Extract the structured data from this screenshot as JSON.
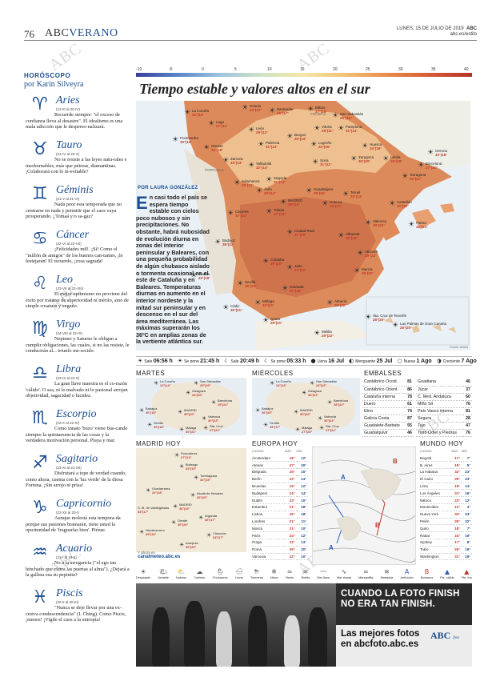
{
  "header": {
    "page_number": "76",
    "brand": "ABC",
    "section": "VERANO",
    "date": "LUNES, 15 DE JULIO DE 2019",
    "paper": "ABC",
    "site": "abc.es/estilo"
  },
  "horoscope": {
    "title": "HORÓSCOPO",
    "author": "por Karin Silveyra",
    "signs": [
      {
        "name": "Aries",
        "dates": "(21-III al 20-IV)",
        "text": "Recuerde siempre: \"el exceso de confianza lleva al desastre\". El idealismo es una mala adicción que le desperso-nalizará."
      },
      {
        "name": "Tauro",
        "dates": "(21-IV al 20-V)",
        "text": "No se resiste a las leyes natu-rales e insobornables, más que pétreas, diamantinas. ¡Colaborará con lo in-evitable?"
      },
      {
        "name": "Géminis",
        "dates": "(21-V al 21-VI)",
        "text": "Nada peor esta temporada que no centrarse en nada y permitir que el caos vaya prosperando. ¿Tomaá y/o sa-gaz?"
      },
      {
        "name": "Cáncer",
        "dates": "(22-VI al 22-VII)",
        "text": "¡Felicidades mil!. ¡Sí! Como el \"millón de amigos\" de los buenos can-tantes, ¡le festejarán! El recuerdo, ¡cosa sagrada!"
      },
      {
        "name": "Leo",
        "dates": "(23-VII al 23-VIII)",
        "text": "El mejor optimismo no proviene del éxito por tratarse de superioridad ni mérito, sino de simple cosatura y engaño."
      },
      {
        "name": "Virgo",
        "dates": "(24-VIII al 22-IX)",
        "text": "Neptuno y Saturno le obligan a cumplir obligaciones, las cuales, si no las resiste, le conducirán al... triunfo me-recido."
      },
      {
        "name": "Libra",
        "dates": "(23-IX al 22-X)",
        "text": "La gran llave maestra es el co-razón 'cálido'. O sea, ni lo malvado ni lo pasional arrojan objetividad, sagacidad o lucidez."
      },
      {
        "name": "Escorpio",
        "dates": "(23-X al 22-XI)",
        "text": "Como innato 'buzo' viene bus-cando siempre la quintaesencia de las cosas y la verdadera motivación personal. Playa y mar."
      },
      {
        "name": "Sagitario",
        "dates": "(23-XI al 21-XII)",
        "text": "Disfrutará a tope de verdad cuando, como ahora, cuenta con la 'luz verde' de la diosa Fortuna. ¡Sin arrojo ni prisa!"
      },
      {
        "name": "Capricornio",
        "dates": "(22-XII al 20-I)",
        "text": "Aunque molestá esta tempora-da porque sus pasiones bramarán, tiene usted la oportunidad de 'fraguarlas bien'. Piénse."
      },
      {
        "name": "Acuario",
        "dates": "(21-I al 19-II)",
        "text": "No a la arrogancia (\"el ego tan hinchado que cierra las puertas al alma\"). ¿Dejará a la gallina esa su pepinita?"
      },
      {
        "name": "Piscis",
        "dates": "(20-II al 20-III)",
        "text": "\"Nunca se deje llevar por una ex-cesiva condescendencia\" (I. Ching). Como Piscis, ¡menos! ¡Vigile el caos a la entropía!"
      }
    ]
  },
  "scale": [
    "-10",
    "-5",
    "0",
    "5",
    "10",
    "15",
    "20",
    "25",
    "30",
    "35",
    "40"
  ],
  "headline": "Tiempo estable y valores altos en el sur",
  "byline": {
    "prefix": "POR",
    "name": "LAURA GONZÁLEZ"
  },
  "article": {
    "drop_cap": "E",
    "text": "n casi todo el país se espera tiempo estable con cielos poco nubosos y sin precipitaciones. No obstante, habrá nubosidad de evolución diurna en zonas del interior peninsular y Baleares, con una pequeña probabilidad de algún chubasco aislado o tormenta ocasional en el este de Cataluña y en Baleares. Temperaturas diurnas en aumento en el interior nordeste y la mitad sur peninsular y en descenso en el sur del área mediterránea. Las máximas superarán los 36ºC en amplias zonas de la vertiente atlántica sur."
  },
  "map_labels": {
    "portugal": "PORTUGAL",
    "francia": "FRANCIA",
    "credit": "Fuente: Aemet"
  },
  "cities": [
    {
      "name": "La Coruña",
      "temp": "22°|15°"
    },
    {
      "name": "Oviedo",
      "temp": "24°|14°"
    },
    {
      "name": "Santander",
      "temp": "25°|17°"
    },
    {
      "name": "Bilbao",
      "temp": "27°|16°"
    },
    {
      "name": "San Sebastián",
      "temp": "25°|16°"
    },
    {
      "name": "Lugo",
      "temp": "27°|11°"
    },
    {
      "name": "Pontevedra",
      "temp": "30°|14°"
    },
    {
      "name": "Orense",
      "temp": "32°|18°"
    },
    {
      "name": "León",
      "temp": "29°|12°"
    },
    {
      "name": "Palencia",
      "temp": "31°|14°"
    },
    {
      "name": "Burgos",
      "temp": "30°|14°"
    },
    {
      "name": "Vitoria",
      "temp": "28°|11°"
    },
    {
      "name": "Pamplona",
      "temp": "31°|14°"
    },
    {
      "name": "Logroño",
      "temp": "32°|15°"
    },
    {
      "name": "Huesca",
      "temp": "34°|18°"
    },
    {
      "name": "Gerona",
      "temp": "32°|18°"
    },
    {
      "name": "Barcelona",
      "temp": "27°|21°"
    },
    {
      "name": "Lérida",
      "temp": "36°|18°"
    },
    {
      "name": "Zaragoza",
      "temp": "36°|20°"
    },
    {
      "name": "Tarragona",
      "temp": "29°|21°"
    },
    {
      "name": "Zamora",
      "temp": "33°|14°"
    },
    {
      "name": "Valladolid",
      "temp": "32°|14°"
    },
    {
      "name": "Soria",
      "temp": "31°|11°"
    },
    {
      "name": "Salamanca",
      "temp": "32°|13°"
    },
    {
      "name": "Segovia",
      "temp": "31°|14°"
    },
    {
      "name": "Ávila",
      "temp": "30°|14°"
    },
    {
      "name": "Guadalajara",
      "temp": "35°|15°"
    },
    {
      "name": "Teruel",
      "temp": "33°|13°"
    },
    {
      "name": "Castellón",
      "temp": "30°|22°"
    },
    {
      "name": "Palma",
      "temp": "32°|21°"
    },
    {
      "name": "MADRID",
      "temp": "36°|19°"
    },
    {
      "name": "Cuenca",
      "temp": "34°|17°"
    },
    {
      "name": "Cáceres",
      "temp": "37°|21°"
    },
    {
      "name": "Toledo",
      "temp": "37°|19°"
    },
    {
      "name": "Valencia",
      "temp": "30°|23°"
    },
    {
      "name": "Albacete",
      "temp": "36°|16°"
    },
    {
      "name": "Ciudad Real",
      "temp": "37°|19°"
    },
    {
      "name": "Alicante",
      "temp": "29°|22°"
    },
    {
      "name": "Badajoz",
      "temp": "38°|21°"
    },
    {
      "name": "Córdoba",
      "temp": "39°|20°"
    },
    {
      "name": "Jaén",
      "temp": "37°|22°"
    },
    {
      "name": "Murcia",
      "temp": "35°|22°"
    },
    {
      "name": "Huelva",
      "temp": "33°|18°"
    },
    {
      "name": "Sevilla",
      "temp": "38°|20°"
    },
    {
      "name": "Granada",
      "temp": "37°|18°"
    },
    {
      "name": "Almería",
      "temp": "29°|22°"
    },
    {
      "name": "Cádiz",
      "temp": "30°|21°"
    },
    {
      "name": "Málaga",
      "temp": "33°|21°"
    },
    {
      "name": "Ceuta",
      "temp": "29°|21°"
    },
    {
      "name": "Melilla",
      "temp": "29°|22°"
    },
    {
      "name": "Sta. Cruz de Tenerife",
      "temp": "28°|20°"
    },
    {
      "name": "Las Palmas de Gran Canaria",
      "temp": "26°|20°"
    }
  ],
  "sunbar": [
    {
      "label": "Sale",
      "value": "06:56 h"
    },
    {
      "label": "Se pone",
      "value": "21:45 h"
    },
    {
      "label": "Sale",
      "value": "20:49 h"
    },
    {
      "label": "Se pone",
      "value": "05:33 h"
    },
    {
      "label": "Llena",
      "value": "16 Jul"
    },
    {
      "label": "Menguante",
      "value": "25 Jul"
    },
    {
      "label": "Nueva",
      "value": "1 Ago"
    },
    {
      "label": "Creciente",
      "value": "7 Ago"
    }
  ],
  "martes": {
    "title": "MARTES",
    "cities": [
      {
        "name": "La Coruña",
        "temp": "23°|14°"
      },
      {
        "name": "San Sebastián",
        "temp": "25°|16°"
      },
      {
        "name": "Zaragoza",
        "temp": "34°|20°"
      },
      {
        "name": "Barcelona",
        "temp": "29°|21°"
      },
      {
        "name": "Badajoz",
        "temp": "36°|18°"
      },
      {
        "name": "MADRID",
        "temp": "35°|20°"
      },
      {
        "name": "Valencia",
        "temp": "30°|23°"
      },
      {
        "name": "Sevilla",
        "temp": "35°|18°"
      },
      {
        "name": "Málaga",
        "temp": "30°|21°"
      },
      {
        "name": "Sta. Cruz",
        "temp": "27°|21°"
      }
    ]
  },
  "miercoles": {
    "title": "MIÉRCOLES",
    "cities": [
      {
        "name": "La Coruña",
        "temp": "24°|16°"
      },
      {
        "name": "San Sebastián",
        "temp": "24°|16°"
      },
      {
        "name": "Zaragoza",
        "temp": "36°|21°"
      },
      {
        "name": "Barcelona",
        "temp": "28°|22°"
      },
      {
        "name": "Badajoz",
        "temp": "36°|20°"
      },
      {
        "name": "MADRID",
        "temp": "35°|20°"
      },
      {
        "name": "Valencia",
        "temp": "30°|22°"
      },
      {
        "name": "Sevilla",
        "temp": "35°|17°"
      },
      {
        "name": "Málaga",
        "temp": "27°|20°"
      },
      {
        "name": "Sta. Cruz",
        "temp": "27°|21°"
      }
    ]
  },
  "embalses": {
    "title": "EMBALSES",
    "left": [
      {
        "name": "Cantábrico Occid.",
        "value": "81"
      },
      {
        "name": "Cantábrico Orient.",
        "value": "86"
      },
      {
        "name": "Cataluña interna",
        "value": "78"
      },
      {
        "name": "Duero",
        "value": "61"
      },
      {
        "name": "Ebro",
        "value": "74"
      },
      {
        "name": "Galicia Costa",
        "value": "87"
      },
      {
        "name": "Guadalete-Barbate",
        "value": "55"
      },
      {
        "name": "Guadalquivir",
        "value": "46"
      }
    ],
    "right": [
      {
        "name": "Guadiana",
        "value": "46"
      },
      {
        "name": "Júcar",
        "value": "37"
      },
      {
        "name": "C. Med. Andaluza",
        "value": "60"
      },
      {
        "name": "Miño Sil",
        "value": "76"
      },
      {
        "name": "País Vasco interna",
        "value": "81"
      },
      {
        "name": "Segura",
        "value": "28"
      },
      {
        "name": "Tajo",
        "value": "47"
      },
      {
        "name": "Tinto Odiel y Piedras",
        "value": "76"
      }
    ]
  },
  "madrid_hoy": {
    "title": "MADRID HOY",
    "cities": [
      {
        "name": "Somosierra",
        "temp": "27°|14°"
      },
      {
        "name": "Buitrago",
        "temp": "33°|15°"
      },
      {
        "name": "Torrelaguna",
        "temp": "34°|15°"
      },
      {
        "name": "Guadarrama",
        "temp": "32°|18°"
      },
      {
        "name": "Alcalá de Henares",
        "temp": "36°|20°"
      },
      {
        "name": "S. M. de Valdeiglesias",
        "temp": "33°|17°"
      },
      {
        "name": "MADRID",
        "temp": "36°|19°"
      },
      {
        "name": "Arganda",
        "temp": "36°|17°"
      },
      {
        "name": "Getafe",
        "temp": "36°|20°"
      },
      {
        "name": "Navalcarnero",
        "temp": "35°|19°"
      },
      {
        "name": "Chinchón",
        "temp": "34°|17°"
      },
      {
        "name": "Aranjuez",
        "temp": "36°|20°"
      }
    ],
    "more_text": "Y ahora en",
    "more_link": "canalmeteo.abc.es"
  },
  "europa": {
    "title": "EUROPA HOY",
    "cols": [
      "CIUDAD",
      "MÁX",
      "MÍN"
    ],
    "rows": [
      [
        "Ámsterdam",
        "18°",
        "12°"
      ],
      [
        "Atenas",
        "27°",
        "20°"
      ],
      [
        "Belgrado",
        "25°",
        "15°"
      ],
      [
        "Berlín",
        "22°",
        "14°"
      ],
      [
        "Bruselas",
        "19°",
        "12°"
      ],
      [
        "Budapest",
        "24°",
        "14°"
      ],
      [
        "Dublín",
        "23°",
        "10°"
      ],
      [
        "Estambul",
        "21°",
        "18°"
      ],
      [
        "Lisboa",
        "25°",
        "18°"
      ],
      [
        "Londres",
        "21°",
        "11°"
      ],
      [
        "Moscú",
        "21°",
        "10°"
      ],
      [
        "París",
        "24°",
        "12°"
      ],
      [
        "Praga",
        "23°",
        "13°"
      ],
      [
        "Roma",
        "29°",
        "20°"
      ],
      [
        "Varsovia",
        "22°",
        "10°"
      ]
    ]
  },
  "mundo": {
    "title": "MUNDO HOY",
    "cols": [
      "CIUDAD",
      "MÁX",
      "MÍN"
    ],
    "rows": [
      [
        "Bogotá",
        "17°",
        "7°"
      ],
      [
        "B. Aires",
        "15°",
        "5°"
      ],
      [
        "La Habana",
        "32°",
        "23°"
      ],
      [
        "El Cairo",
        "39°",
        "23°"
      ],
      [
        "Lima",
        "19°",
        "14°"
      ],
      [
        "Los Ángeles",
        "31°",
        "16°"
      ],
      [
        "México",
        "23°",
        "12°"
      ],
      [
        "Montevideo",
        "12°",
        "3°"
      ],
      [
        "Nueva York",
        "30°",
        "23°"
      ],
      [
        "Pekín",
        "35°",
        "22°"
      ],
      [
        "Quito",
        "18°",
        "7°"
      ],
      [
        "Rabat",
        "24°",
        "19°"
      ],
      [
        "Sydney",
        "17°",
        "8°"
      ],
      [
        "Tokio",
        "26°",
        "19°"
      ],
      [
        "Washington",
        "31°",
        "19°"
      ]
    ]
  },
  "legend": [
    {
      "icon": "☀",
      "label": "Despejado"
    },
    {
      "icon": "🌤",
      "label": "Variable"
    },
    {
      "icon": "⛅",
      "label": "Nuboso"
    },
    {
      "icon": "☁",
      "label": "Cubierto"
    },
    {
      "icon": "🌦",
      "label": "Chubascos"
    },
    {
      "icon": "🌧",
      "label": "Lluvia"
    },
    {
      "icon": "⛈",
      "label": "Tormenta"
    },
    {
      "icon": "❄",
      "label": "Nieve"
    },
    {
      "icon": "≈",
      "label": "Viento"
    },
    {
      "icon": "≋",
      "label": "Niebla"
    },
    {
      "icon": "〰",
      "label": "Mar llana"
    },
    {
      "icon": "∿",
      "label": "Mar rizada"
    },
    {
      "icon": "≈",
      "label": "Marejadilla"
    },
    {
      "icon": "≋",
      "label": "Marejada"
    },
    {
      "icon": "A",
      "label": "Anticiclón"
    },
    {
      "icon": "B",
      "label": "Borrasca"
    },
    {
      "icon": "▲",
      "label": "Fte. cálido"
    },
    {
      "icon": "▲",
      "label": "Fte. frío"
    }
  ],
  "ad": {
    "headline": "CUANDO LA FOTO FINISH NO ERA TAN FINISH.",
    "tagline": "Las mejores fotos en abcfoto.abc.es",
    "logo": "ABC",
    "logo_sub": "foto"
  },
  "watermark": "ABC",
  "colors": {
    "accent": "#1a4c8f",
    "hot": "#d8744a",
    "warm": "#f0c89a"
  }
}
